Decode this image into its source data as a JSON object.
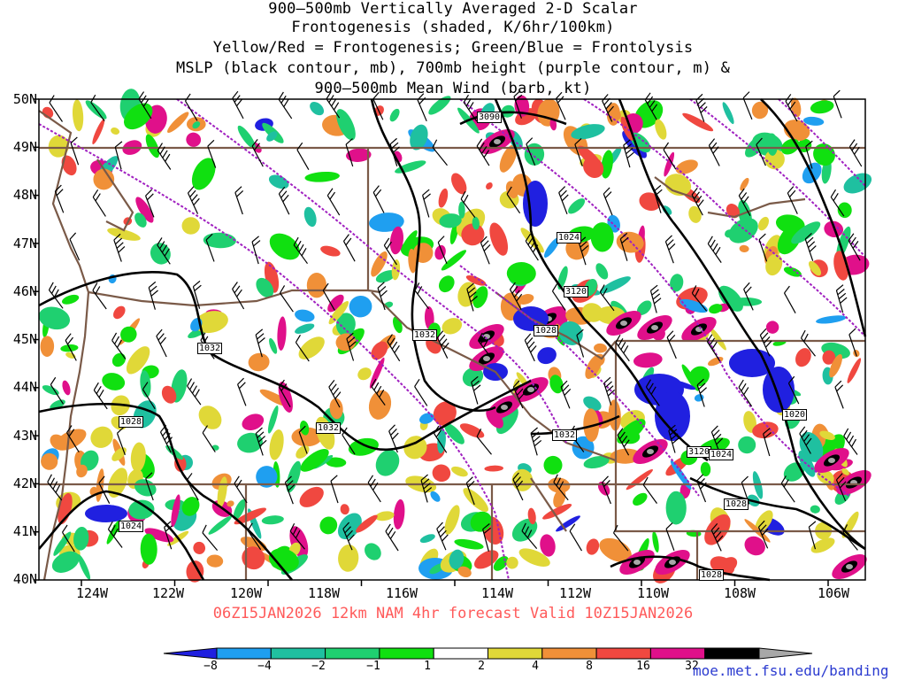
{
  "title_lines": [
    "900—500mb Vertically Averaged 2-D Scalar",
    "Frontogenesis (shaded, K/6hr/100km)",
    "Yellow/Red = Frontogenesis;  Green/Blue = Frontolysis",
    "MSLP (black contour, mb), 700mb height (purple contour, m) &",
    "900—500mb Mean Wind (barb, kt)"
  ],
  "lat_labels": [
    "50N",
    "49N",
    "48N",
    "47N",
    "46N",
    "45N",
    "44N",
    "43N",
    "42N",
    "41N",
    "40N"
  ],
  "lon_labels": [
    "124W",
    "122W",
    "120W",
    "118W",
    "116W",
    "114W",
    "112W",
    "110W",
    "108W",
    "106W"
  ],
  "valid_text": "06Z15JAN2026 12km NAM 4hr forecast Valid 10Z15JAN2026",
  "colorbar": {
    "labels": [
      "−8",
      "−4",
      "−2",
      "−1",
      "1",
      "2",
      "4",
      "8",
      "16",
      "32"
    ],
    "colors": [
      "#2020e0",
      "#1f9ff0",
      "#1fc0a0",
      "#1fd070",
      "#10e010",
      "#ffffff",
      "#e0d838",
      "#f09038",
      "#f04840",
      "#e0108a",
      "#000000",
      "#a8a8a8"
    ]
  },
  "contour_labels": {
    "mslp": [
      "1032",
      "1032",
      "1032",
      "1028",
      "1024",
      "1024",
      "1020",
      "1024",
      "1028",
      "1028",
      "1032",
      "1028",
      "1024"
    ],
    "height": [
      "3090",
      "3120",
      "3120"
    ]
  },
  "url": "moe.met.fsu.edu/banding",
  "colors": {
    "mslp": "#000000",
    "height": "#a020c0",
    "borders": "#7a5a48",
    "barbs": "#000000"
  }
}
